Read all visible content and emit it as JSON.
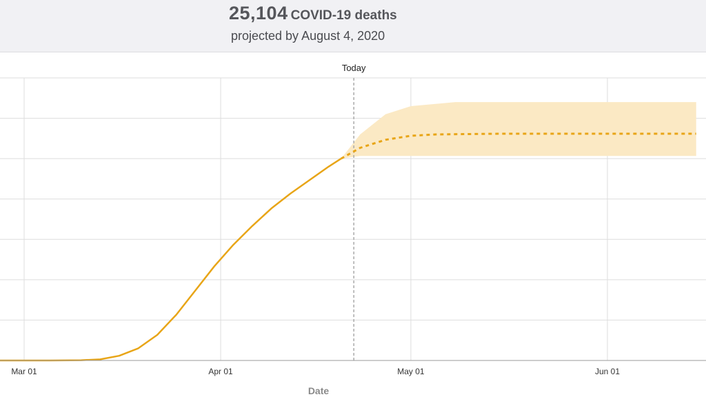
{
  "header": {
    "count": "25,104",
    "count_label": "COVID-19 deaths",
    "subtitle": "projected by August 4, 2020"
  },
  "chart_data": {
    "type": "line",
    "xlabel": "Date",
    "ylabel": "",
    "x_ticks": [
      "Mar 01",
      "Apr 01",
      "May 01",
      "Jun 01"
    ],
    "today_label": "Today",
    "today_date": "2020-04-22",
    "colors": {
      "line": "#e8a517",
      "band": "#fbe9c4",
      "grid": "#dddddd",
      "today": "#aaaaaa"
    },
    "grid": true,
    "series": [
      {
        "style": "solid",
        "points": [
          [
            "2020-02-25",
            0
          ],
          [
            "2020-03-05",
            0
          ],
          [
            "2020-03-10",
            20
          ],
          [
            "2020-03-13",
            80
          ],
          [
            "2020-03-16",
            350
          ],
          [
            "2020-03-19",
            900
          ],
          [
            "2020-03-22",
            1900
          ],
          [
            "2020-03-25",
            3400
          ],
          [
            "2020-03-28",
            5200
          ],
          [
            "2020-03-31",
            7000
          ],
          [
            "2020-04-03",
            8600
          ],
          [
            "2020-04-06",
            10000
          ],
          [
            "2020-04-09",
            11300
          ],
          [
            "2020-04-12",
            12400
          ],
          [
            "2020-04-15",
            13400
          ],
          [
            "2020-04-18",
            14400
          ],
          [
            "2020-04-20",
            15000
          ]
        ]
      },
      {
        "style": "dashed",
        "points": [
          [
            "2020-04-20",
            15000
          ],
          [
            "2020-04-23",
            15800
          ],
          [
            "2020-04-27",
            16400
          ],
          [
            "2020-05-01",
            16700
          ],
          [
            "2020-05-05",
            16800
          ],
          [
            "2020-05-15",
            16850
          ],
          [
            "2020-06-01",
            16850
          ],
          [
            "2020-06-15",
            16850
          ]
        ]
      }
    ],
    "band": {
      "upper": [
        [
          "2020-04-20",
          15000
        ],
        [
          "2020-04-23",
          16800
        ],
        [
          "2020-04-27",
          18300
        ],
        [
          "2020-05-01",
          18900
        ],
        [
          "2020-05-08",
          19200
        ],
        [
          "2020-06-15",
          19200
        ]
      ],
      "lower": [
        [
          "2020-04-20",
          15000
        ],
        [
          "2020-04-23",
          15200
        ],
        [
          "2020-04-27",
          15200
        ],
        [
          "2020-05-01",
          15200
        ],
        [
          "2020-06-15",
          15200
        ]
      ]
    },
    "xlim": [
      "2020-02-25",
      "2020-06-15"
    ],
    "ylim": [
      0,
      21000
    ]
  }
}
